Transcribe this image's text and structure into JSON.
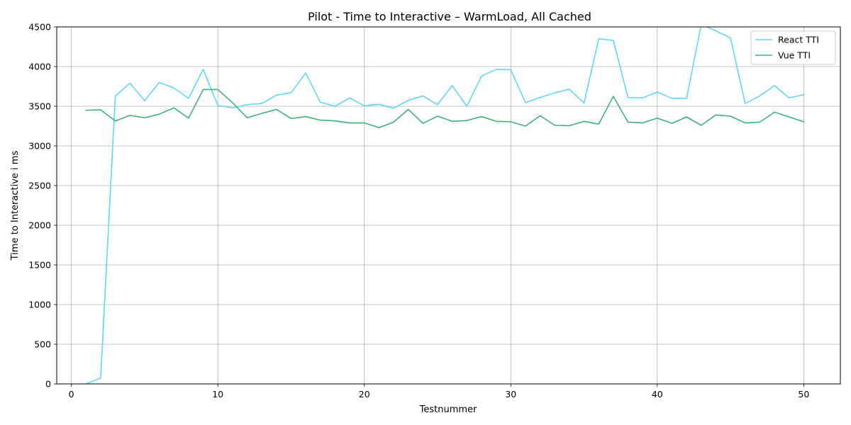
{
  "chart_data": {
    "type": "line",
    "title": "Pilot - Time to Interactive  – WarmLoad, All Cached",
    "xlabel": "Testnummer",
    "ylabel": "Time to Interactive  i ms",
    "xlim": [
      -1,
      52.5
    ],
    "ylim": [
      0,
      4500
    ],
    "xticks": [
      0,
      10,
      20,
      30,
      40,
      50
    ],
    "yticks": [
      0,
      500,
      1000,
      1500,
      2000,
      2500,
      3000,
      3500,
      4000,
      4500
    ],
    "grid": true,
    "legend_position": "top-right",
    "x": [
      1,
      2,
      3,
      4,
      5,
      6,
      7,
      8,
      9,
      10,
      11,
      12,
      13,
      14,
      15,
      16,
      17,
      18,
      19,
      20,
      21,
      22,
      23,
      24,
      25,
      26,
      27,
      28,
      29,
      30,
      31,
      32,
      33,
      34,
      35,
      36,
      37,
      38,
      39,
      40,
      41,
      42,
      43,
      44,
      45,
      46,
      47,
      48,
      49,
      50
    ],
    "series": [
      {
        "name": "React TTI",
        "color": "#5fd8f2",
        "values": [
          0,
          75,
          3630,
          3790,
          3570,
          3800,
          3730,
          3600,
          3965,
          3510,
          3480,
          3520,
          3535,
          3640,
          3670,
          3920,
          3550,
          3500,
          3605,
          3505,
          3525,
          3475,
          3575,
          3630,
          3520,
          3760,
          3500,
          3880,
          3965,
          3960,
          3545,
          3610,
          3670,
          3715,
          3540,
          4350,
          4330,
          3610,
          3605,
          3680,
          3600,
          3600,
          4530,
          4450,
          4360,
          3535,
          3630,
          3760,
          3605,
          3645
        ]
      },
      {
        "name": "Vue TTI",
        "color": "#3cb37a",
        "values": [
          3450,
          3455,
          3315,
          3385,
          3355,
          3400,
          3480,
          3350,
          3710,
          3710,
          3545,
          3355,
          3410,
          3460,
          3345,
          3370,
          3325,
          3315,
          3290,
          3290,
          3230,
          3300,
          3460,
          3285,
          3375,
          3310,
          3320,
          3370,
          3310,
          3305,
          3250,
          3380,
          3260,
          3255,
          3310,
          3275,
          3625,
          3300,
          3290,
          3350,
          3285,
          3365,
          3260,
          3390,
          3375,
          3290,
          3300,
          3425,
          3365,
          3305
        ]
      }
    ]
  }
}
